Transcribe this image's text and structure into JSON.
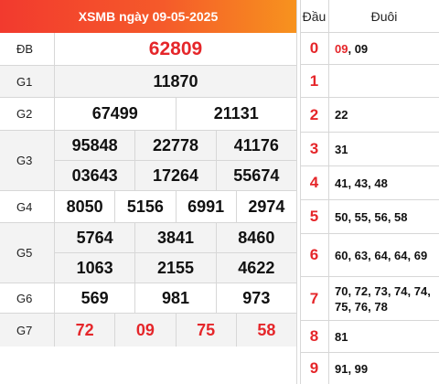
{
  "title": "XSMB ngày 09-05-2025",
  "prizes": [
    {
      "label": "ĐB",
      "lines": [
        [
          "62809"
        ]
      ]
    },
    {
      "label": "G1",
      "lines": [
        [
          "11870"
        ]
      ]
    },
    {
      "label": "G2",
      "lines": [
        [
          "67499",
          "21131"
        ]
      ]
    },
    {
      "label": "G3",
      "lines": [
        [
          "95848",
          "22778",
          "41176"
        ],
        [
          "03643",
          "17264",
          "55674"
        ]
      ]
    },
    {
      "label": "G4",
      "lines": [
        [
          "8050",
          "5156",
          "6991",
          "2974"
        ]
      ]
    },
    {
      "label": "G5",
      "lines": [
        [
          "5764",
          "3841",
          "8460"
        ],
        [
          "1063",
          "2155",
          "4622"
        ]
      ]
    },
    {
      "label": "G6",
      "lines": [
        [
          "569",
          "981",
          "973"
        ]
      ]
    },
    {
      "label": "G7",
      "lines": [
        [
          "72",
          "09",
          "75",
          "58"
        ]
      ]
    }
  ],
  "loto": {
    "head_label": "Đầu",
    "tail_label": "Đuôi",
    "rows": [
      {
        "head": "0",
        "tail_red": "09",
        "tail": ", 09"
      },
      {
        "head": "1",
        "tail_red": "",
        "tail": ""
      },
      {
        "head": "2",
        "tail_red": "",
        "tail": "22"
      },
      {
        "head": "3",
        "tail_red": "",
        "tail": "31"
      },
      {
        "head": "4",
        "tail_red": "",
        "tail": "41, 43, 48"
      },
      {
        "head": "5",
        "tail_red": "",
        "tail": "50, 55, 56, 58"
      },
      {
        "head": "6",
        "tail_red": "",
        "tail": "60, 63, 64, 64, 69"
      },
      {
        "head": "7",
        "tail_red": "",
        "tail": "70, 72, 73, 74, 74, 75, 76, 78"
      },
      {
        "head": "8",
        "tail_red": "",
        "tail": "81"
      },
      {
        "head": "9",
        "tail_red": "",
        "tail": "91, 99"
      }
    ]
  },
  "colors": {
    "accent_red": "#e5262a",
    "header_gradient_start": "#f23a2e",
    "header_gradient_end": "#f7931e"
  }
}
